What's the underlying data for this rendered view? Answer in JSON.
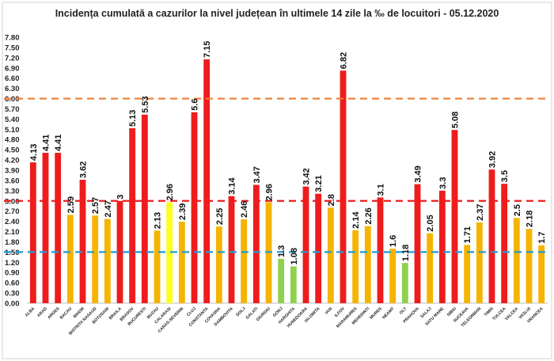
{
  "chart_data": {
    "type": "bar",
    "title": "Incidența cumulată a cazurilor la nivel județean în ultimele 14 zile    la ‰ de locuitori  - 05.12.2020",
    "xlabel": "",
    "ylabel": "",
    "ylim": [
      0,
      7.8
    ],
    "yticks": [
      "7.80",
      "7.50",
      "7.20",
      "6.90",
      "6.60",
      "6.30",
      "6.00",
      "5.70",
      "5.40",
      "5.10",
      "4.80",
      "4.50",
      "4.20",
      "3.90",
      "3.60",
      "3.30",
      "3.00",
      "2.70",
      "2.40",
      "2.10",
      "1.80",
      "1.50",
      "1.20",
      "0.90",
      "0.60",
      "0.30",
      "0.00"
    ],
    "grid": false,
    "categories": [
      "ALBA",
      "ARAD",
      "ARGES",
      "BACAU",
      "BIHOR",
      "BISTRITA NASAUD",
      "BOTOSANI",
      "BRAILA",
      "BRASOV",
      "BUCURESTI",
      "BUZAU",
      "CALARASI",
      "CARAS-SEVERIN",
      "CLUJ",
      "CONSTANTA",
      "COVASNA",
      "DAMBOVITA",
      "DOLJ",
      "GALATI",
      "GIURGIU",
      "GORJ",
      "HARGHITA",
      "HUNEDOARA",
      "IALOMITA",
      "IASI",
      "ILFOV",
      "MARAMURES",
      "MEHEDINTI",
      "MURES",
      "NEAMT",
      "OLT",
      "PRAHOVA",
      "SALAJ",
      "SATU MARE",
      "SIBIU",
      "SUCEAVA",
      "TELEORMAN",
      "TIMIS",
      "TULCEA",
      "VALCEA",
      "VASLUI",
      "VRANCEA"
    ],
    "values": [
      4.13,
      4.41,
      4.41,
      2.59,
      3.62,
      2.57,
      2.47,
      3,
      5.13,
      5.53,
      2.13,
      2.96,
      2.39,
      5.6,
      7.15,
      2.25,
      3.14,
      2.46,
      3.47,
      2.96,
      1.3,
      1.08,
      3.42,
      3.21,
      2.8,
      6.82,
      2.14,
      2.26,
      3.1,
      1.6,
      1.18,
      3.49,
      2.05,
      3.3,
      5.08,
      1.71,
      2.37,
      3.92,
      3.5,
      2.5,
      2.18,
      1.7
    ],
    "labels": [
      "4.13",
      "4.41",
      "4.41",
      "2.59",
      "3.62",
      "2.57",
      "2.47",
      "3",
      "5.13",
      "5.53",
      "2.13",
      "2.96",
      "2.39",
      "5.6",
      "7.15",
      "2.25",
      "3.14",
      "2.46",
      "3.47",
      "2.96",
      "1.3",
      "1.08",
      "3.42",
      "3.21",
      "2.8",
      "6.82",
      "2.14",
      "2.26",
      "3.1",
      "1.6",
      "1.18",
      "3.49",
      "2.05",
      "3.3",
      "5.08",
      "1.71",
      "2.37",
      "3.92",
      "3.5",
      "2.5",
      "2.18",
      "1.7"
    ],
    "colors": {
      "red": "#ee1c1c",
      "orange": "#f5b400",
      "yellow": "#fefe1e",
      "green": "#8fd14f"
    },
    "bar_color_keys": [
      "red",
      "red",
      "red",
      "orange",
      "red",
      "orange",
      "orange",
      "red",
      "red",
      "red",
      "orange",
      "yellow",
      "orange",
      "red",
      "red",
      "orange",
      "red",
      "orange",
      "red",
      "orange",
      "green",
      "green",
      "red",
      "red",
      "orange",
      "red",
      "orange",
      "orange",
      "red",
      "orange",
      "green",
      "red",
      "orange",
      "red",
      "red",
      "orange",
      "orange",
      "red",
      "red",
      "orange",
      "orange",
      "orange"
    ],
    "thresholds": [
      {
        "value": 6.0,
        "color": "#ee7d31"
      },
      {
        "value": 3.0,
        "color": "#ee1c1c"
      },
      {
        "value": 1.5,
        "color": "#1f9bd7"
      }
    ]
  }
}
